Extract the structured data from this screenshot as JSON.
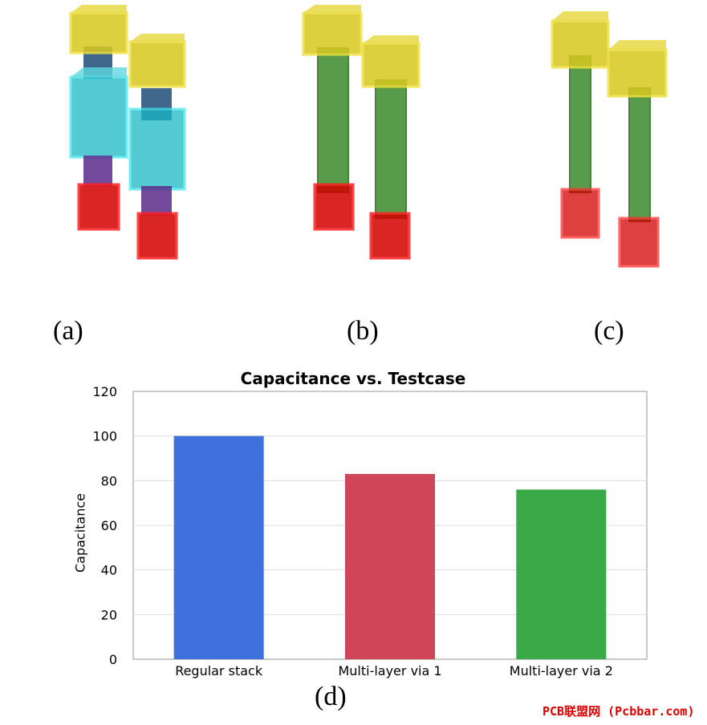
{
  "panels": [
    {
      "label": "(a)"
    },
    {
      "label": "(b)"
    },
    {
      "label": "(c)"
    }
  ],
  "panel_d_label": "(d)",
  "colors": {
    "pad_yellow": "#d8c81e",
    "pad_red": "#d40000",
    "cyan": "#1ab8c4",
    "purple": "#5a2a8a",
    "dark_blue": "#1d4e78",
    "green": "#3a8a2c"
  },
  "chart_data": {
    "type": "bar",
    "title": "Capacitance vs. Testcase",
    "xlabel": "",
    "ylabel": "Capacitance",
    "categories": [
      "Regular stack",
      "Multi-layer via 1",
      "Multi-layer via 2"
    ],
    "values": [
      100,
      83,
      76
    ],
    "bar_colors": [
      "#4070dd",
      "#d04558",
      "#3aaa48"
    ],
    "ylim": [
      0,
      120
    ],
    "yticks": [
      0,
      20,
      40,
      60,
      80,
      100,
      120
    ],
    "grid": true,
    "legend": "none"
  },
  "watermark": "PCB联盟网 (Pcbbar.com)"
}
